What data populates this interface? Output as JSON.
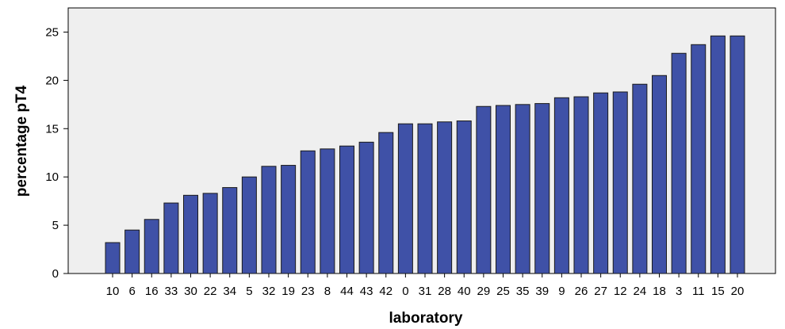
{
  "chart_data": {
    "type": "bar",
    "xlabel": "laboratory",
    "ylabel": "percentage pT4",
    "ylim": [
      0,
      27.5
    ],
    "yticks": [
      0,
      5,
      10,
      15,
      20,
      25
    ],
    "categories": [
      "10",
      "6",
      "16",
      "33",
      "30",
      "22",
      "34",
      "5",
      "32",
      "19",
      "23",
      "8",
      "44",
      "43",
      "42",
      "0",
      "31",
      "28",
      "40",
      "29",
      "25",
      "35",
      "39",
      "9",
      "26",
      "27",
      "12",
      "24",
      "18",
      "3",
      "11",
      "15",
      "20"
    ],
    "values": [
      3.2,
      4.5,
      5.6,
      7.3,
      8.1,
      8.3,
      8.9,
      10.0,
      11.1,
      11.2,
      12.7,
      12.9,
      13.2,
      13.6,
      14.6,
      15.5,
      15.5,
      15.7,
      15.8,
      17.3,
      17.4,
      17.5,
      17.6,
      18.2,
      18.3,
      18.7,
      18.8,
      19.6,
      20.5,
      22.8,
      23.7,
      24.6,
      24.6
    ],
    "grid": false,
    "colors": {
      "bar_fill": "#3f51a7",
      "bar_stroke": "#1a1a1a",
      "plot_background": "#efefef",
      "page_background": "#ffffff"
    }
  }
}
